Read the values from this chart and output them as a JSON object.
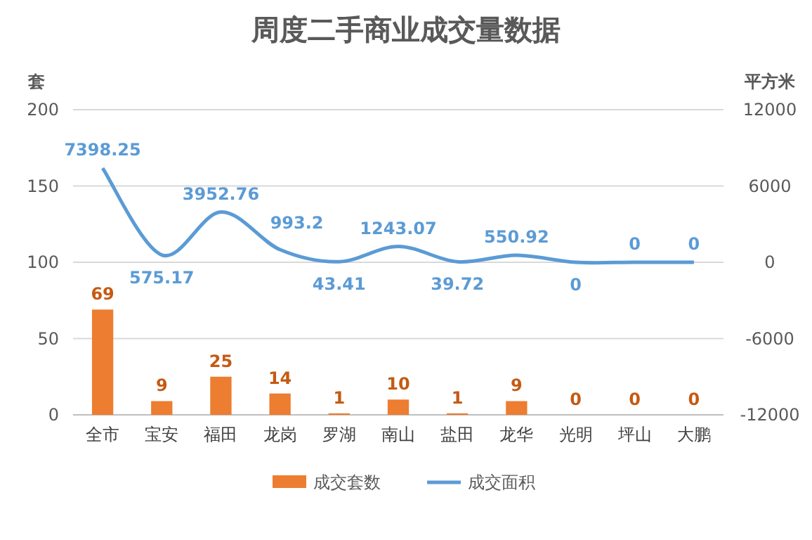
{
  "chart_data": {
    "type": "bar",
    "title": "周度二手商业成交量数据",
    "ylabel": "套",
    "y2label": "平方米",
    "categories": [
      "全市",
      "宝安",
      "福田",
      "龙岗",
      "罗湖",
      "南山",
      "盐田",
      "龙华",
      "光明",
      "坪山",
      "大鹏"
    ],
    "series": [
      {
        "name": "成交套数",
        "color": "#ed7d31",
        "values": [
          69,
          9,
          25,
          14,
          1,
          10,
          1,
          9,
          0,
          0,
          0
        ]
      },
      {
        "name": "成交面积",
        "type": "line",
        "axis": "y2",
        "color": "#5b9bd5",
        "values": [
          7398.25,
          575.17,
          3952.76,
          993.2,
          43.41,
          1243.07,
          39.72,
          550.92,
          0,
          0,
          0
        ]
      }
    ],
    "ylim": [
      0,
      200
    ],
    "yticks": [
      0,
      50,
      100,
      150,
      200
    ],
    "y2lim": [
      -12000,
      12000
    ],
    "y2ticks": [
      -12000,
      -6000,
      0,
      6000,
      12000
    ],
    "grid": "y",
    "legend": "bottom",
    "data_labels": true,
    "marker": "none"
  }
}
